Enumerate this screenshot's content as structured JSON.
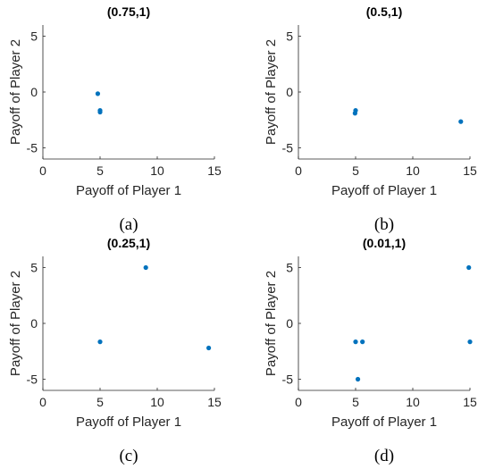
{
  "chart_data": [
    {
      "type": "scatter",
      "title": "(0.75,1)",
      "caption": "(a)",
      "xlabel": "Payoff of Player 1",
      "ylabel": "Payoff of Player 2",
      "xlim": [
        0,
        15
      ],
      "ylim": [
        -6,
        6
      ],
      "xticks": [
        0,
        5,
        10,
        15
      ],
      "yticks": [
        -5,
        0,
        5
      ],
      "grid": false,
      "color": "#0072BD",
      "points": [
        {
          "x": 4.8,
          "y": -0.15
        },
        {
          "x": 5.0,
          "y": -1.65
        },
        {
          "x": 5.0,
          "y": -1.8
        }
      ]
    },
    {
      "type": "scatter",
      "title": "(0.5,1)",
      "caption": "(b)",
      "xlabel": "Payoff of Player 1",
      "ylabel": "Payoff of Player 2",
      "xlim": [
        0,
        15
      ],
      "ylim": [
        -6,
        6
      ],
      "xticks": [
        0,
        5,
        10,
        15
      ],
      "yticks": [
        -5,
        0,
        5
      ],
      "grid": false,
      "color": "#0072BD",
      "points": [
        {
          "x": 5.0,
          "y": -1.65
        },
        {
          "x": 4.95,
          "y": -1.9
        },
        {
          "x": 14.2,
          "y": -2.65
        }
      ]
    },
    {
      "type": "scatter",
      "title": "(0.25,1)",
      "caption": "(c)",
      "xlabel": "Payoff of Player 1",
      "ylabel": "Payoff of Player 2",
      "xlim": [
        0,
        15
      ],
      "ylim": [
        -6,
        6
      ],
      "xticks": [
        0,
        5,
        10,
        15
      ],
      "yticks": [
        -5,
        0,
        5
      ],
      "grid": false,
      "color": "#0072BD",
      "points": [
        {
          "x": 9.0,
          "y": 5.0
        },
        {
          "x": 5.0,
          "y": -1.65
        },
        {
          "x": 14.5,
          "y": -2.2
        }
      ]
    },
    {
      "type": "scatter",
      "title": "(0.01,1)",
      "caption": "(d)",
      "xlabel": "Payoff of Player 1",
      "ylabel": "Payoff of Player 2",
      "xlim": [
        0,
        15
      ],
      "ylim": [
        -6,
        6
      ],
      "xticks": [
        0,
        5,
        10,
        15
      ],
      "yticks": [
        -5,
        0,
        5
      ],
      "grid": false,
      "color": "#0072BD",
      "points": [
        {
          "x": 14.9,
          "y": 5.0
        },
        {
          "x": 5.0,
          "y": -1.65
        },
        {
          "x": 5.6,
          "y": -1.65
        },
        {
          "x": 15.0,
          "y": -1.65
        },
        {
          "x": 5.2,
          "y": -5.0
        }
      ]
    }
  ]
}
